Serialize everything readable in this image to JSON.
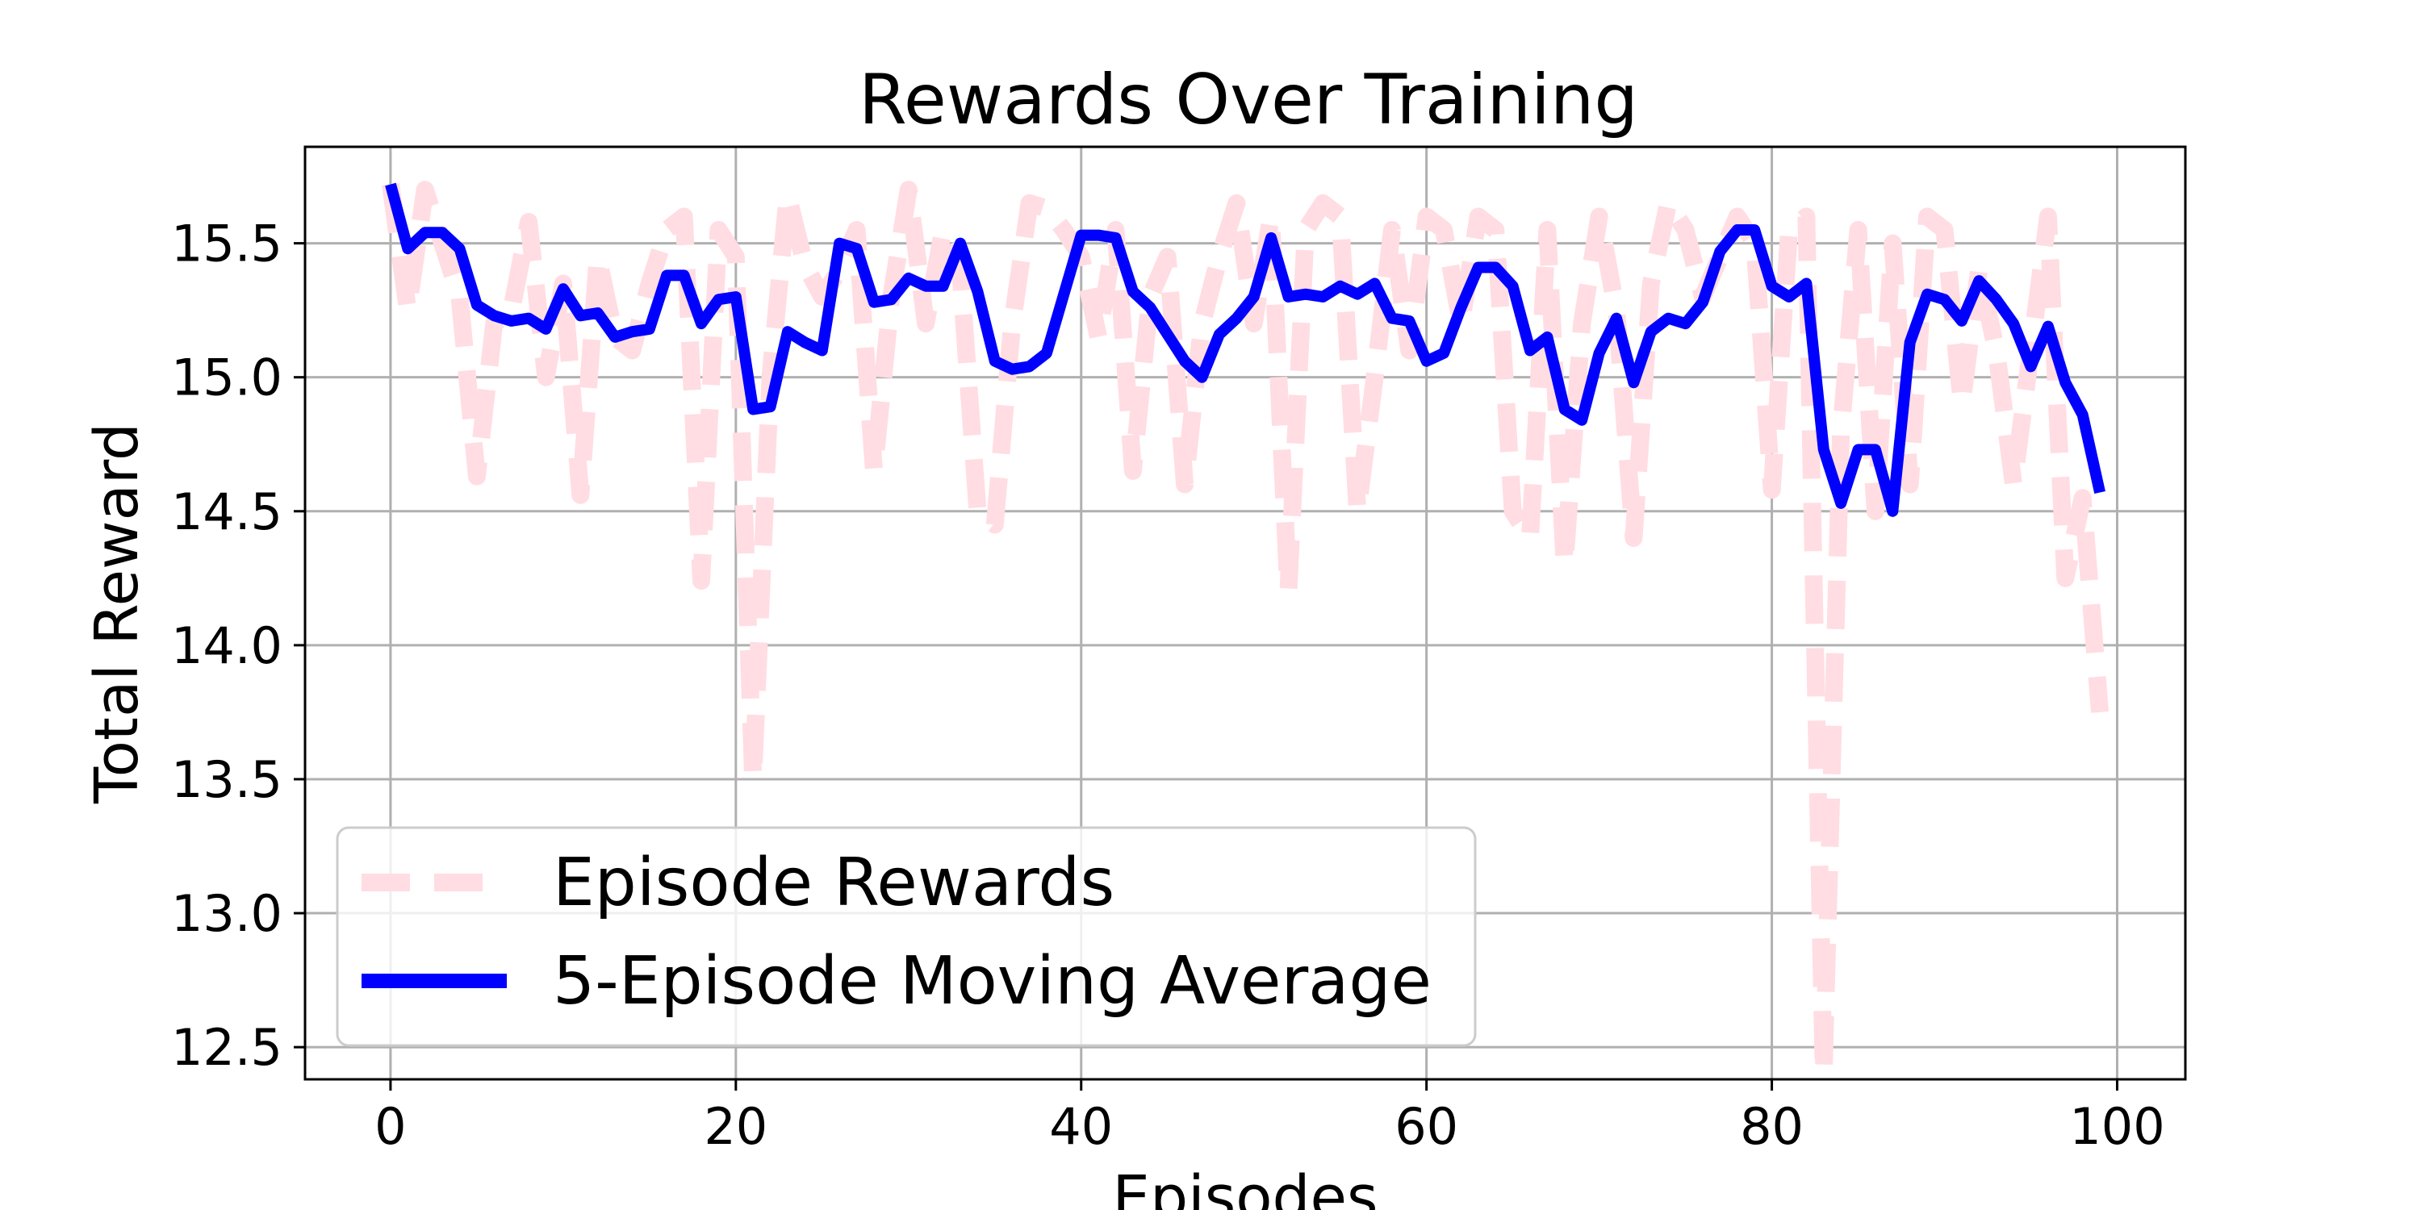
{
  "chart_data": {
    "type": "line",
    "title": "Rewards Over Training",
    "xlabel": "Episodes",
    "ylabel": "Total Reward",
    "xlim": [
      -4.95,
      103.95
    ],
    "ylim": [
      12.38,
      15.86
    ],
    "xticks": [
      0,
      20,
      40,
      60,
      80,
      100
    ],
    "yticks": [
      12.5,
      13.0,
      13.5,
      14.0,
      14.5,
      15.0,
      15.5
    ],
    "grid": true,
    "legend_position": "lower-left",
    "series": [
      {
        "name": "Episode Rewards",
        "color": "#ffdde3",
        "style": "dashed",
        "x": [
          0,
          1,
          2,
          3,
          4,
          5,
          6,
          7,
          8,
          9,
          10,
          11,
          12,
          13,
          14,
          15,
          16,
          17,
          18,
          19,
          20,
          21,
          22,
          23,
          24,
          25,
          26,
          27,
          28,
          29,
          30,
          31,
          32,
          33,
          34,
          35,
          36,
          37,
          38,
          39,
          40,
          41,
          42,
          43,
          44,
          45,
          46,
          47,
          48,
          49,
          50,
          51,
          52,
          53,
          54,
          55,
          56,
          57,
          58,
          59,
          60,
          61,
          62,
          63,
          64,
          65,
          66,
          67,
          68,
          69,
          70,
          71,
          72,
          73,
          74,
          75,
          76,
          77,
          78,
          79,
          80,
          81,
          82,
          83,
          84,
          85,
          86,
          87,
          88,
          89,
          90,
          91,
          92,
          93,
          94,
          95,
          96,
          97,
          98,
          99
        ],
        "y": [
          15.72,
          15.25,
          15.7,
          15.5,
          15.3,
          14.63,
          15.2,
          15.25,
          15.58,
          15.0,
          15.35,
          14.56,
          15.45,
          15.15,
          15.1,
          15.35,
          15.55,
          15.6,
          14.24,
          15.55,
          15.45,
          13.5,
          15.0,
          15.68,
          15.42,
          15.3,
          15.4,
          15.55,
          14.65,
          15.3,
          15.7,
          15.2,
          15.55,
          15.4,
          14.5,
          14.45,
          15.2,
          15.65,
          15.63,
          15.55,
          15.45,
          15.15,
          15.55,
          14.65,
          15.3,
          15.45,
          14.6,
          15.2,
          15.45,
          15.65,
          15.2,
          15.6,
          14.2,
          15.55,
          15.65,
          15.6,
          14.5,
          15.0,
          15.55,
          15.1,
          15.6,
          15.55,
          15.2,
          15.6,
          15.55,
          14.5,
          14.4,
          15.55,
          14.3,
          15.2,
          15.6,
          15.25,
          14.4,
          15.35,
          15.65,
          15.55,
          15.3,
          15.45,
          15.6,
          15.5,
          14.58,
          15.55,
          15.6,
          12.4,
          14.8,
          15.55,
          14.5,
          15.5,
          14.6,
          15.6,
          15.55,
          14.9,
          15.4,
          15.1,
          14.6,
          15.1,
          15.6,
          14.25,
          14.55,
          13.75
        ]
      },
      {
        "name": "5-Episode Moving Average",
        "color": "#0000ff",
        "style": "solid",
        "x": [
          0,
          1,
          2,
          3,
          4,
          5,
          6,
          7,
          8,
          9,
          10,
          11,
          12,
          13,
          14,
          15,
          16,
          17,
          18,
          19,
          20,
          21,
          22,
          23,
          24,
          25,
          26,
          27,
          28,
          29,
          30,
          31,
          32,
          33,
          34,
          35,
          36,
          37,
          38,
          39,
          40,
          41,
          42,
          43,
          44,
          45,
          46,
          47,
          48,
          49,
          50,
          51,
          52,
          53,
          54,
          55,
          56,
          57,
          58,
          59,
          60,
          61,
          62,
          63,
          64,
          65,
          66,
          67,
          68,
          69,
          70,
          71,
          72,
          73,
          74,
          75,
          76,
          77,
          78,
          79,
          80,
          81,
          82,
          83,
          84,
          85,
          86,
          87,
          88,
          89,
          90,
          91,
          92,
          93,
          94,
          95,
          96,
          97,
          98,
          99
        ],
        "y": [
          15.72,
          15.48,
          15.54,
          15.54,
          15.48,
          15.27,
          15.23,
          15.21,
          15.22,
          15.18,
          15.33,
          15.23,
          15.24,
          15.15,
          15.17,
          15.18,
          15.38,
          15.38,
          15.2,
          15.29,
          15.3,
          14.88,
          14.89,
          15.17,
          15.13,
          15.1,
          15.5,
          15.48,
          15.28,
          15.29,
          15.37,
          15.34,
          15.34,
          15.5,
          15.32,
          15.06,
          15.03,
          15.04,
          15.09,
          15.31,
          15.53,
          15.53,
          15.52,
          15.32,
          15.26,
          15.16,
          15.06,
          15.0,
          15.16,
          15.22,
          15.3,
          15.52,
          15.3,
          15.31,
          15.3,
          15.34,
          15.31,
          15.35,
          15.22,
          15.21,
          15.06,
          15.09,
          15.26,
          15.41,
          15.41,
          15.34,
          15.1,
          15.15,
          14.88,
          14.84,
          15.09,
          15.22,
          14.98,
          15.17,
          15.22,
          15.2,
          15.28,
          15.47,
          15.55,
          15.55,
          15.34,
          15.3,
          15.35,
          14.73,
          14.53,
          14.73,
          14.73,
          14.5,
          15.13,
          15.31,
          15.29,
          15.21,
          15.36,
          15.29,
          15.2,
          15.04,
          15.19,
          14.98,
          14.86,
          14.57
        ]
      }
    ]
  }
}
